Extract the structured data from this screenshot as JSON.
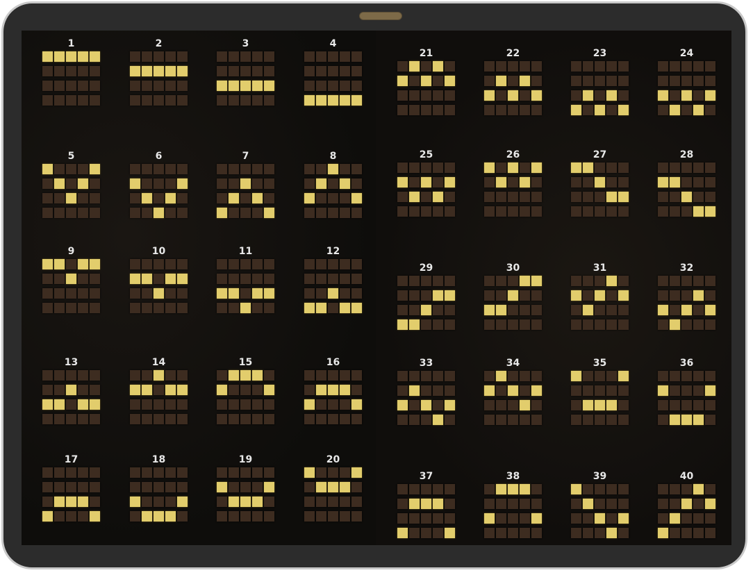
{
  "colors": {
    "cell_off": "#3d2c20",
    "cell_on": "#e2cd6c",
    "frame": "#2c2c2c"
  },
  "grid": {
    "reels": 5,
    "rows": 4
  },
  "paylines": [
    {
      "number": "1",
      "rows": [
        0,
        0,
        0,
        0,
        0
      ]
    },
    {
      "number": "2",
      "rows": [
        1,
        1,
        1,
        1,
        1
      ]
    },
    {
      "number": "3",
      "rows": [
        2,
        2,
        2,
        2,
        2
      ]
    },
    {
      "number": "4",
      "rows": [
        3,
        3,
        3,
        3,
        3
      ]
    },
    {
      "number": "5",
      "rows": [
        0,
        1,
        2,
        1,
        0
      ]
    },
    {
      "number": "6",
      "rows": [
        1,
        2,
        3,
        2,
        1
      ]
    },
    {
      "number": "7",
      "rows": [
        3,
        2,
        1,
        2,
        3
      ]
    },
    {
      "number": "8",
      "rows": [
        2,
        1,
        0,
        1,
        2
      ]
    },
    {
      "number": "9",
      "rows": [
        0,
        0,
        1,
        0,
        0
      ]
    },
    {
      "number": "10",
      "rows": [
        1,
        1,
        2,
        1,
        1
      ]
    },
    {
      "number": "11",
      "rows": [
        2,
        2,
        3,
        2,
        2
      ]
    },
    {
      "number": "12",
      "rows": [
        3,
        3,
        2,
        3,
        3
      ]
    },
    {
      "number": "13",
      "rows": [
        2,
        2,
        1,
        2,
        2
      ]
    },
    {
      "number": "14",
      "rows": [
        1,
        1,
        0,
        1,
        1
      ]
    },
    {
      "number": "15",
      "rows": [
        1,
        0,
        0,
        0,
        1
      ]
    },
    {
      "number": "16",
      "rows": [
        2,
        1,
        1,
        1,
        2
      ]
    },
    {
      "number": "17",
      "rows": [
        3,
        2,
        2,
        2,
        3
      ]
    },
    {
      "number": "18",
      "rows": [
        2,
        3,
        3,
        3,
        2
      ]
    },
    {
      "number": "19",
      "rows": [
        1,
        2,
        2,
        2,
        1
      ]
    },
    {
      "number": "20",
      "rows": [
        0,
        1,
        1,
        1,
        0
      ]
    },
    {
      "number": "21",
      "rows": [
        1,
        0,
        1,
        0,
        1
      ]
    },
    {
      "number": "22",
      "rows": [
        2,
        1,
        2,
        1,
        2
      ]
    },
    {
      "number": "23",
      "rows": [
        3,
        2,
        3,
        2,
        3
      ]
    },
    {
      "number": "24",
      "rows": [
        2,
        3,
        2,
        3,
        2
      ]
    },
    {
      "number": "25",
      "rows": [
        1,
        2,
        1,
        2,
        1
      ]
    },
    {
      "number": "26",
      "rows": [
        0,
        1,
        0,
        1,
        0
      ]
    },
    {
      "number": "27",
      "rows": [
        0,
        0,
        1,
        2,
        2
      ]
    },
    {
      "number": "28",
      "rows": [
        1,
        1,
        2,
        3,
        3
      ]
    },
    {
      "number": "29",
      "rows": [
        3,
        3,
        2,
        1,
        1
      ]
    },
    {
      "number": "30",
      "rows": [
        2,
        2,
        1,
        0,
        0
      ]
    },
    {
      "number": "31",
      "rows": [
        1,
        2,
        1,
        0,
        1
      ]
    },
    {
      "number": "32",
      "rows": [
        2,
        3,
        2,
        1,
        2
      ]
    },
    {
      "number": "33",
      "rows": [
        2,
        1,
        2,
        3,
        2
      ]
    },
    {
      "number": "34",
      "rows": [
        1,
        0,
        1,
        2,
        1
      ]
    },
    {
      "number": "35",
      "rows": [
        0,
        2,
        2,
        2,
        0
      ]
    },
    {
      "number": "36",
      "rows": [
        1,
        3,
        3,
        3,
        1
      ]
    },
    {
      "number": "37",
      "rows": [
        3,
        1,
        1,
        1,
        3
      ]
    },
    {
      "number": "38",
      "rows": [
        2,
        0,
        0,
        0,
        2
      ]
    },
    {
      "number": "39",
      "rows": [
        0,
        1,
        2,
        3,
        2
      ]
    },
    {
      "number": "40",
      "rows": [
        3,
        2,
        1,
        0,
        1
      ]
    }
  ]
}
